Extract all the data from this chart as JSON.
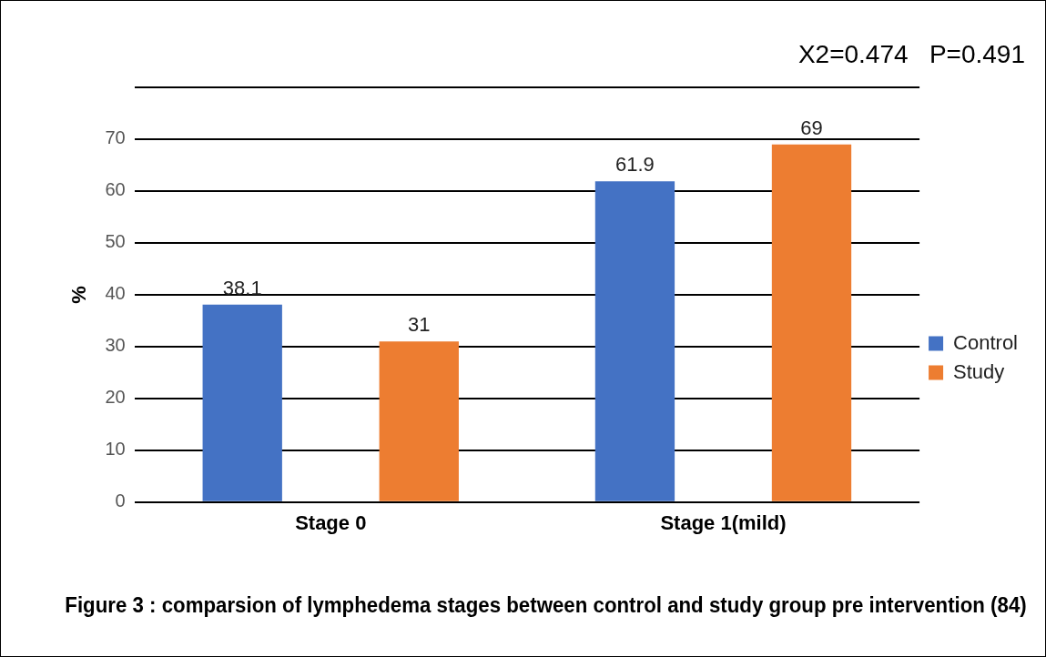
{
  "chart_data": {
    "type": "bar",
    "title": "Figure 3 : comparsion of lymphedema stages between control and study group pre intervention (84)",
    "ylabel": "%",
    "annotations": [
      "X2=0.474   P=0.491"
    ],
    "categories": [
      "Stage 0",
      "Stage 1(mild)"
    ],
    "series": [
      {
        "name": "Control",
        "color": "#4472c4",
        "values": [
          38.1,
          61.9
        ]
      },
      {
        "name": "Study",
        "color": "#ed7d31",
        "values": [
          31,
          69
        ]
      }
    ],
    "ylim": [
      0,
      80
    ],
    "yticks": [
      0,
      10,
      20,
      30,
      40,
      50,
      60,
      70,
      {
        "value": 80,
        "label": null
      }
    ],
    "grid": "y",
    "legend": "right",
    "data_labels": true
  }
}
